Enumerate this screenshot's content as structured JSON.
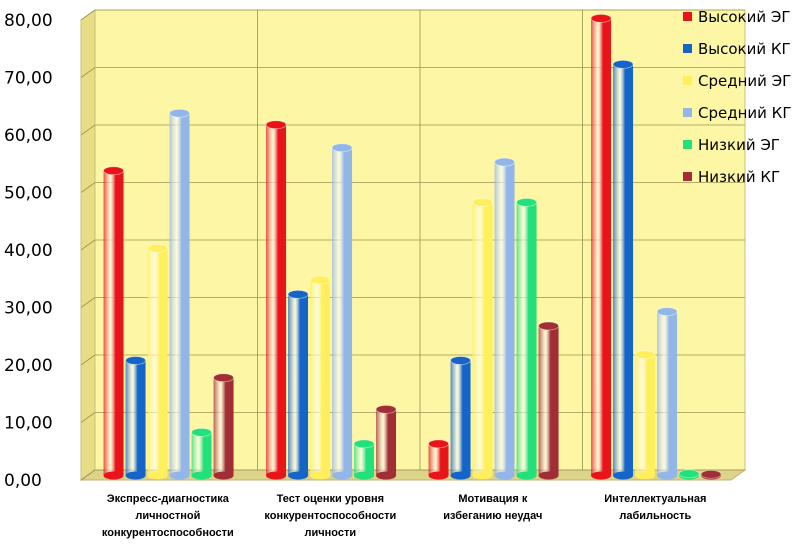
{
  "chart_data": {
    "type": "bar",
    "title": "",
    "xlabel": "",
    "ylabel": "",
    "ylim": [
      0,
      80
    ],
    "yticks": [
      "0,00",
      "10,00",
      "20,00",
      "30,00",
      "40,00",
      "50,00",
      "60,00",
      "70,00",
      "80,00"
    ],
    "grid": "horizontal",
    "legend_position": "top-right",
    "categories": [
      [
        "Экспресс-диагностика",
        "личностной",
        "конкурентоспособности"
      ],
      [
        "Тест оценки уровня",
        "конкурентоспособности",
        "личности"
      ],
      [
        "Мотивация к",
        "избеганию неудач"
      ],
      [
        "Интеллектуальная",
        "лабильность"
      ]
    ],
    "series": [
      {
        "name": "Высокий ЭГ",
        "color": "#e8141a",
        "values": [
          53,
          61,
          5.5,
          79.5
        ]
      },
      {
        "name": "Высокий КГ",
        "color": "#1565c8",
        "values": [
          20,
          31.5,
          20,
          71.5
        ]
      },
      {
        "name": "Средний ЭГ",
        "color": "#ffef5c",
        "values": [
          39.5,
          34,
          47.5,
          21
        ]
      },
      {
        "name": "Средний КГ",
        "color": "#93b6e8",
        "values": [
          63,
          57,
          54.5,
          28.5
        ]
      },
      {
        "name": "Низкий ЭГ",
        "color": "#22e07a",
        "values": [
          7.5,
          5.5,
          47.5,
          0.3
        ]
      },
      {
        "name": "Низкий КГ",
        "color": "#a02e34",
        "values": [
          17,
          11.5,
          26,
          0.2
        ]
      }
    ]
  }
}
